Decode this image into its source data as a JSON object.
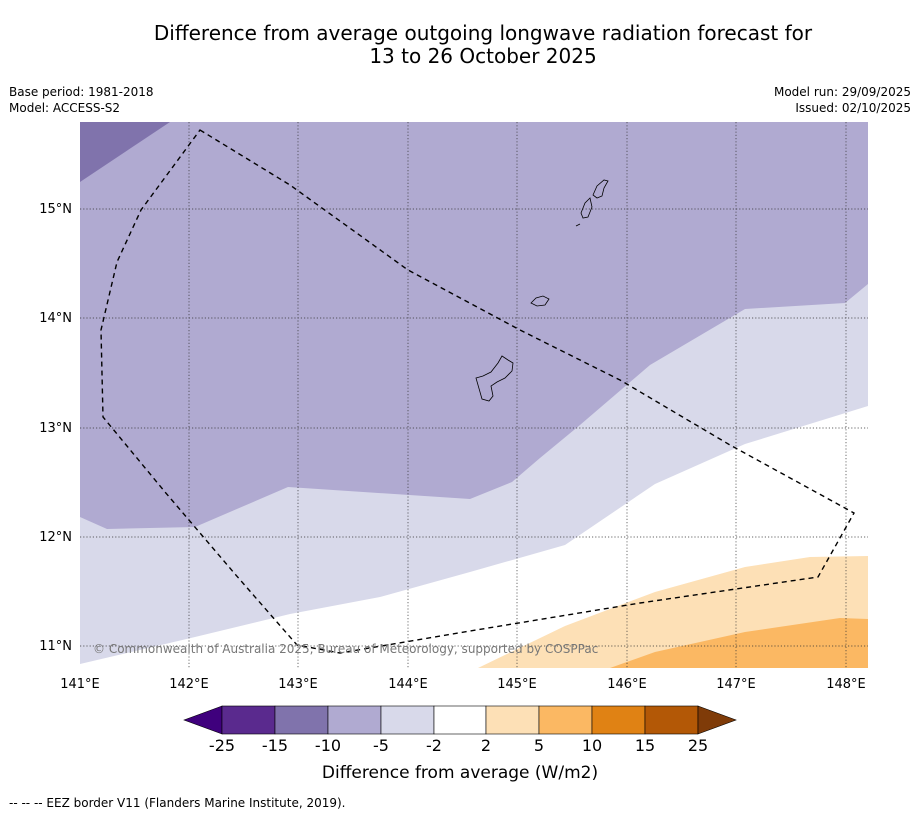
{
  "title": {
    "line1": "Difference from average outgoing longwave radiation forecast for",
    "line2": "13 to 26 October 2025"
  },
  "meta_left": {
    "base_period": "Base period: 1981-2018",
    "model": "Model: ACCESS-S2"
  },
  "meta_right": {
    "model_run": "Model run: 29/09/2025",
    "issued": "Issued: 02/10/2025"
  },
  "map": {
    "lon_range": [
      141.0,
      148.2
    ],
    "lat_range": [
      10.8,
      15.8
    ],
    "lat_ticks": [
      {
        "value": 15,
        "label": "15°N"
      },
      {
        "value": 14,
        "label": "14°N"
      },
      {
        "value": 13,
        "label": "13°N"
      },
      {
        "value": 12,
        "label": "12°N"
      },
      {
        "value": 11,
        "label": "11°N"
      }
    ],
    "lon_ticks": [
      {
        "value": 141,
        "label": "141°E"
      },
      {
        "value": 142,
        "label": "142°E"
      },
      {
        "value": 143,
        "label": "143°E"
      },
      {
        "value": 144,
        "label": "144°E"
      },
      {
        "value": 145,
        "label": "145°E"
      },
      {
        "value": 146,
        "label": "146°E"
      },
      {
        "value": 147,
        "label": "147°E"
      },
      {
        "value": 148,
        "label": "148°E"
      }
    ],
    "copyright": "© Commonwealth of Australia 2025, Bureau of Meteorology, supported by COSPPac"
  },
  "colorbar": {
    "ticks": [
      "-25",
      "-15",
      "-10",
      "-5",
      "-2",
      "2",
      "5",
      "10",
      "15",
      "25"
    ],
    "colors": [
      "#3f007d",
      "#5a2a8e",
      "#8073ac",
      "#b0aad1",
      "#d8d9ea",
      "#ffffff",
      "#fde0b6",
      "#fbb863",
      "#e08214",
      "#b35806",
      "#7f3b08"
    ],
    "label": "Difference from average (W/m2)"
  },
  "footer": {
    "legend": "--  --  -- EEZ border V11 (Flanders Marine Institute, 2019)."
  }
}
